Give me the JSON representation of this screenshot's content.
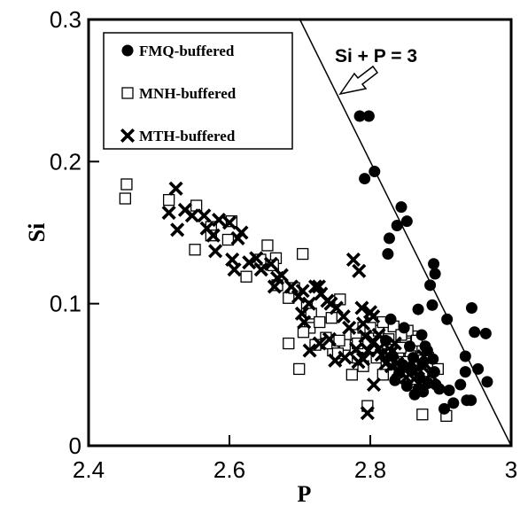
{
  "chart_data": {
    "type": "scatter",
    "xlabel": "P",
    "ylabel": "Si",
    "xlim": [
      2.4,
      3.0
    ],
    "ylim": [
      0,
      0.3
    ],
    "x_ticks": [
      "2.4",
      "2.6",
      "2.8",
      "3"
    ],
    "y_ticks": [
      "0",
      "0.1",
      "0.2",
      "0.3"
    ],
    "grid": false,
    "legend_position": "top-left",
    "annotation": {
      "text": "Si + P = 3",
      "line": [
        [
          2.7,
          0.3
        ],
        [
          3.0,
          0.0
        ]
      ],
      "arrow_points_to_line_near": [
        2.75,
        0.25
      ]
    },
    "series": [
      {
        "name": "FMQ-buffered",
        "marker": "filled-circle",
        "points": [
          [
            2.785,
            0.232
          ],
          [
            2.798,
            0.232
          ],
          [
            2.792,
            0.188
          ],
          [
            2.806,
            0.193
          ],
          [
            2.844,
            0.168
          ],
          [
            2.838,
            0.155
          ],
          [
            2.852,
            0.158
          ],
          [
            2.827,
            0.146
          ],
          [
            2.825,
            0.135
          ],
          [
            2.89,
            0.128
          ],
          [
            2.892,
            0.121
          ],
          [
            2.885,
            0.113
          ],
          [
            2.888,
            0.099
          ],
          [
            2.868,
            0.096
          ],
          [
            2.909,
            0.089
          ],
          [
            2.944,
            0.097
          ],
          [
            2.948,
            0.08
          ],
          [
            2.964,
            0.079
          ],
          [
            2.953,
            0.054
          ],
          [
            2.966,
            0.045
          ],
          [
            2.935,
            0.063
          ],
          [
            2.935,
            0.052
          ],
          [
            2.928,
            0.043
          ],
          [
            2.943,
            0.032
          ],
          [
            2.937,
            0.032
          ],
          [
            2.918,
            0.03
          ],
          [
            2.905,
            0.026
          ],
          [
            2.912,
            0.039
          ],
          [
            2.898,
            0.04
          ],
          [
            2.891,
            0.052
          ],
          [
            2.881,
            0.067
          ],
          [
            2.873,
            0.078
          ],
          [
            2.848,
            0.083
          ],
          [
            2.829,
            0.089
          ],
          [
            2.822,
            0.074
          ],
          [
            2.832,
            0.063
          ],
          [
            2.846,
            0.057
          ],
          [
            2.861,
            0.062
          ],
          [
            2.858,
            0.053
          ],
          [
            2.874,
            0.058
          ],
          [
            2.87,
            0.048
          ],
          [
            2.882,
            0.044
          ],
          [
            2.893,
            0.043
          ],
          [
            2.875,
            0.038
          ],
          [
            2.863,
            0.036
          ],
          [
            2.852,
            0.042
          ],
          [
            2.841,
            0.051
          ],
          [
            2.835,
            0.046
          ],
          [
            2.878,
            0.07
          ],
          [
            2.889,
            0.061
          ],
          [
            2.856,
            0.07
          ],
          [
            2.868,
            0.04
          ]
        ]
      },
      {
        "name": "MNH-buffered",
        "marker": "open-square",
        "points": [
          [
            2.454,
            0.184
          ],
          [
            2.452,
            0.174
          ],
          [
            2.514,
            0.173
          ],
          [
            2.553,
            0.169
          ],
          [
            2.551,
            0.138
          ],
          [
            2.574,
            0.154
          ],
          [
            2.574,
            0.148
          ],
          [
            2.598,
            0.145
          ],
          [
            2.603,
            0.158
          ],
          [
            2.624,
            0.119
          ],
          [
            2.644,
            0.131
          ],
          [
            2.654,
            0.141
          ],
          [
            2.666,
            0.132
          ],
          [
            2.662,
            0.127
          ],
          [
            2.668,
            0.113
          ],
          [
            2.684,
            0.104
          ],
          [
            2.704,
            0.135
          ],
          [
            2.692,
            0.111
          ],
          [
            2.71,
            0.098
          ],
          [
            2.714,
            0.083
          ],
          [
            2.716,
            0.093
          ],
          [
            2.728,
            0.087
          ],
          [
            2.737,
            0.076
          ],
          [
            2.745,
            0.09
          ],
          [
            2.757,
            0.103
          ],
          [
            2.747,
            0.067
          ],
          [
            2.764,
            0.071
          ],
          [
            2.774,
            0.05
          ],
          [
            2.782,
            0.062
          ],
          [
            2.78,
            0.078
          ],
          [
            2.79,
            0.083
          ],
          [
            2.809,
            0.062
          ],
          [
            2.812,
            0.081
          ],
          [
            2.823,
            0.057
          ],
          [
            2.825,
            0.072
          ],
          [
            2.833,
            0.084
          ],
          [
            2.84,
            0.062
          ],
          [
            2.846,
            0.048
          ],
          [
            2.857,
            0.063
          ],
          [
            2.859,
            0.057
          ],
          [
            2.865,
            0.052
          ],
          [
            2.874,
            0.05
          ],
          [
            2.879,
            0.045
          ],
          [
            2.882,
            0.062
          ],
          [
            2.874,
            0.069
          ],
          [
            2.865,
            0.077
          ],
          [
            2.853,
            0.081
          ],
          [
            2.85,
            0.072
          ],
          [
            2.843,
            0.069
          ],
          [
            2.826,
            0.075
          ],
          [
            2.818,
            0.087
          ],
          [
            2.8,
            0.083
          ],
          [
            2.782,
            0.072
          ],
          [
            2.756,
            0.074
          ],
          [
            2.738,
            0.072
          ],
          [
            2.722,
            0.071
          ],
          [
            2.705,
            0.08
          ],
          [
            2.684,
            0.072
          ],
          [
            2.699,
            0.054
          ],
          [
            2.754,
            0.065
          ],
          [
            2.79,
            0.056
          ],
          [
            2.818,
            0.05
          ],
          [
            2.848,
            0.059
          ],
          [
            2.87,
            0.06
          ],
          [
            2.896,
            0.054
          ],
          [
            2.908,
            0.021
          ],
          [
            2.874,
            0.022
          ],
          [
            2.796,
            0.028
          ],
          [
            2.844,
            0.078
          ],
          [
            2.866,
            0.074
          ],
          [
            2.861,
            0.047
          ]
        ]
      },
      {
        "name": "MTH-buffered",
        "marker": "x-cross",
        "points": [
          [
            2.524,
            0.181
          ],
          [
            2.514,
            0.164
          ],
          [
            2.537,
            0.166
          ],
          [
            2.526,
            0.152
          ],
          [
            2.547,
            0.162
          ],
          [
            2.564,
            0.162
          ],
          [
            2.568,
            0.153
          ],
          [
            2.577,
            0.148
          ],
          [
            2.585,
            0.159
          ],
          [
            2.58,
            0.137
          ],
          [
            2.6,
            0.157
          ],
          [
            2.604,
            0.131
          ],
          [
            2.607,
            0.124
          ],
          [
            2.612,
            0.146
          ],
          [
            2.617,
            0.15
          ],
          [
            2.628,
            0.129
          ],
          [
            2.638,
            0.132
          ],
          [
            2.645,
            0.124
          ],
          [
            2.659,
            0.128
          ],
          [
            2.664,
            0.112
          ],
          [
            2.674,
            0.12
          ],
          [
            2.668,
            0.118
          ],
          [
            2.688,
            0.112
          ],
          [
            2.698,
            0.105
          ],
          [
            2.704,
            0.109
          ],
          [
            2.713,
            0.1
          ],
          [
            2.722,
            0.112
          ],
          [
            2.727,
            0.112
          ],
          [
            2.73,
            0.107
          ],
          [
            2.739,
            0.102
          ],
          [
            2.744,
            0.1
          ],
          [
            2.752,
            0.097
          ],
          [
            2.762,
            0.091
          ],
          [
            2.77,
            0.083
          ],
          [
            2.776,
            0.131
          ],
          [
            2.784,
            0.123
          ],
          [
            2.788,
            0.097
          ],
          [
            2.79,
            0.086
          ],
          [
            2.8,
            0.094
          ],
          [
            2.804,
            0.091
          ],
          [
            2.793,
            0.077
          ],
          [
            2.805,
            0.073
          ],
          [
            2.812,
            0.068
          ],
          [
            2.816,
            0.064
          ],
          [
            2.822,
            0.058
          ],
          [
            2.83,
            0.056
          ],
          [
            2.84,
            0.053
          ],
          [
            2.849,
            0.055
          ],
          [
            2.855,
            0.056
          ],
          [
            2.868,
            0.054
          ],
          [
            2.876,
            0.063
          ],
          [
            2.886,
            0.05
          ],
          [
            2.796,
            0.023
          ],
          [
            2.835,
            0.072
          ],
          [
            2.812,
            0.078
          ],
          [
            2.78,
            0.068
          ],
          [
            2.764,
            0.062
          ],
          [
            2.75,
            0.06
          ],
          [
            2.742,
            0.075
          ],
          [
            2.728,
            0.072
          ],
          [
            2.714,
            0.067
          ],
          [
            2.703,
            0.093
          ],
          [
            2.706,
            0.087
          ],
          [
            2.783,
            0.059
          ],
          [
            2.797,
            0.067
          ],
          [
            2.825,
            0.064
          ],
          [
            2.838,
            0.058
          ],
          [
            2.851,
            0.048
          ],
          [
            2.862,
            0.047
          ],
          [
            2.87,
            0.044
          ],
          [
            2.879,
            0.057
          ],
          [
            2.805,
            0.043
          ],
          [
            2.831,
            0.066
          ],
          [
            2.79,
            0.061
          ]
        ]
      }
    ]
  }
}
